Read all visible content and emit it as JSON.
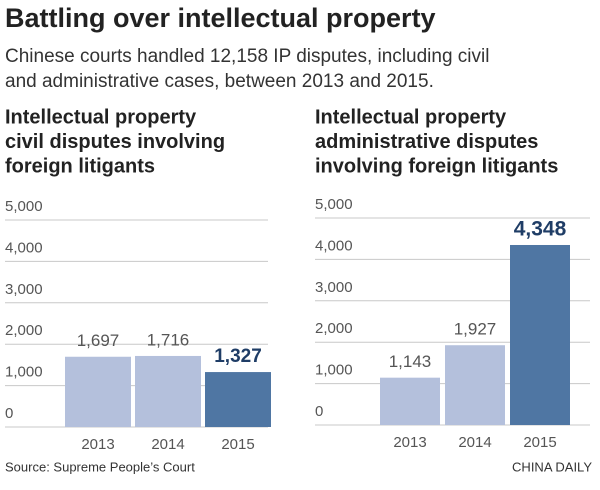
{
  "title": "Battling over intellectual property",
  "subtitle": [
    "Chinese courts handled 12,158 IP disputes, including civil",
    "and administrative cases, between 2013 and 2015."
  ],
  "source": "Source: Supreme People’s Court",
  "credit": "CHINA DAILY",
  "chart_data": [
    {
      "type": "bar",
      "title": [
        "Intellectual property",
        "civil disputes involving",
        "foreign litigants"
      ],
      "categories": [
        "2013",
        "2014",
        "2015"
      ],
      "values": [
        1697,
        1716,
        1327
      ],
      "value_labels": [
        "1,697",
        "1,716",
        "1,327"
      ],
      "colors": [
        "#b4c0dc",
        "#b4c0dc",
        "#4f76a3"
      ],
      "highlight": 2,
      "ylim": [
        0,
        5000
      ],
      "yticks": [
        0,
        {
          "value": 1000,
          "label": "1,000"
        },
        {
          "value": 2000,
          "label": "2,000"
        },
        {
          "value": 3000,
          "label": "3,000"
        },
        {
          "value": 4000,
          "label": "4,000"
        },
        {
          "value": 5000,
          "label": "5,000"
        }
      ],
      "grid": true
    },
    {
      "type": "bar",
      "title": [
        "Intellectual property",
        "administrative disputes",
        "involving foreign litigants"
      ],
      "categories": [
        "2013",
        "2014",
        "2015"
      ],
      "values": [
        1143,
        1927,
        4348
      ],
      "value_labels": [
        "1,143",
        "1,927",
        "4,348"
      ],
      "colors": [
        "#b4c0dc",
        "#b4c0dc",
        "#4f76a3"
      ],
      "highlight": 2,
      "ylim": [
        0,
        5000
      ],
      "yticks": [
        0,
        {
          "value": 1000,
          "label": "1,000"
        },
        {
          "value": 2000,
          "label": "2,000"
        },
        {
          "value": 3000,
          "label": "3,000"
        },
        {
          "value": 4000,
          "label": "4,000"
        },
        {
          "value": 5000,
          "label": "5,000"
        }
      ],
      "grid": true
    }
  ]
}
